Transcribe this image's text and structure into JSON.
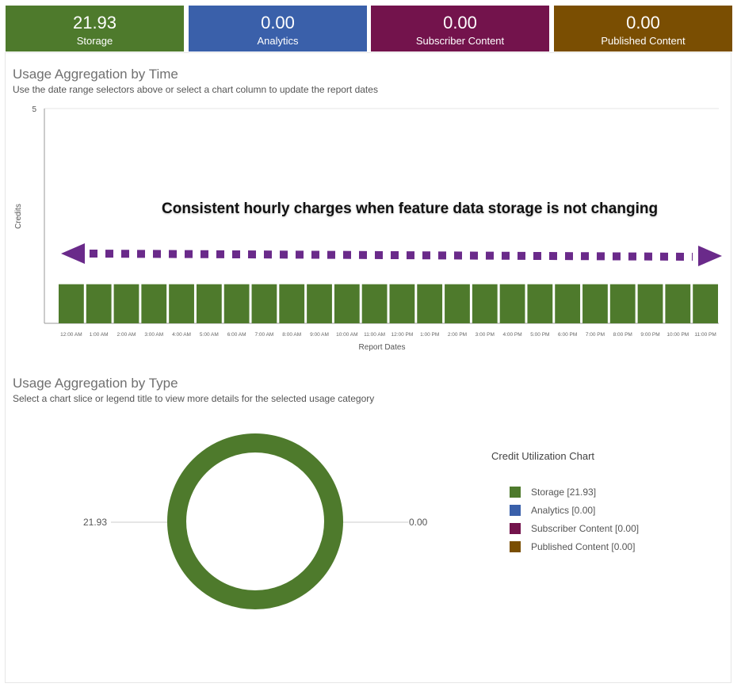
{
  "tiles": [
    {
      "value": "21.93",
      "label": "Storage",
      "color": "#4e7a2c"
    },
    {
      "value": "0.00",
      "label": "Analytics",
      "color": "#3a60aa"
    },
    {
      "value": "0.00",
      "label": "Subscriber Content",
      "color": "#73134c"
    },
    {
      "value": "0.00",
      "label": "Published Content",
      "color": "#7a4e02"
    }
  ],
  "time_section": {
    "title": "Usage Aggregation by Time",
    "subtitle": "Use the date range selectors above or select a chart column to update the report dates"
  },
  "type_section": {
    "title": "Usage Aggregation by Type",
    "subtitle": "Select a chart slice or legend title to view more details for the selected usage category"
  },
  "annotation": {
    "text": "Consistent hourly charges when feature data storage is not changing",
    "arrow_color": "#6a2a8a"
  },
  "chart_data": [
    {
      "type": "bar",
      "xlabel": "Report Dates",
      "ylabel": "Credits",
      "ylim": [
        0,
        5
      ],
      "yticks": [
        5
      ],
      "categories": [
        "12:00 AM",
        "1:00 AM",
        "2:00 AM",
        "3:00 AM",
        "4:00 AM",
        "5:00 AM",
        "6:00 AM",
        "7:00 AM",
        "8:00 AM",
        "9:00 AM",
        "10:00 AM",
        "11:00 AM",
        "12:00 PM",
        "1:00 PM",
        "2:00 PM",
        "3:00 PM",
        "4:00 PM",
        "5:00 PM",
        "6:00 PM",
        "7:00 PM",
        "8:00 PM",
        "9:00 PM",
        "10:00 PM",
        "11:00 PM"
      ],
      "series": [
        {
          "color": "#4e7a2c",
          "values": [
            0.91,
            0.91,
            0.91,
            0.91,
            0.91,
            0.91,
            0.91,
            0.91,
            0.91,
            0.91,
            0.91,
            0.91,
            0.91,
            0.91,
            0.91,
            0.91,
            0.91,
            0.91,
            0.91,
            0.91,
            0.91,
            0.91,
            0.91,
            0.91
          ]
        }
      ],
      "grid": true
    },
    {
      "type": "pie",
      "title": "Credit Utilization Chart",
      "slices": [
        {
          "label": "Storage [21.93]",
          "value": 21.93,
          "color": "#4e7a2c"
        },
        {
          "label": "Analytics [0.00]",
          "value": 0.0,
          "color": "#3a60aa"
        },
        {
          "label": "Subscriber Content [0.00]",
          "value": 0.0,
          "color": "#73134c"
        },
        {
          "label": "Published Content [0.00]",
          "value": 0.0,
          "color": "#7a4e02"
        }
      ],
      "data_labels": [
        "21.93",
        "0.00"
      ],
      "legend": "right"
    }
  ]
}
